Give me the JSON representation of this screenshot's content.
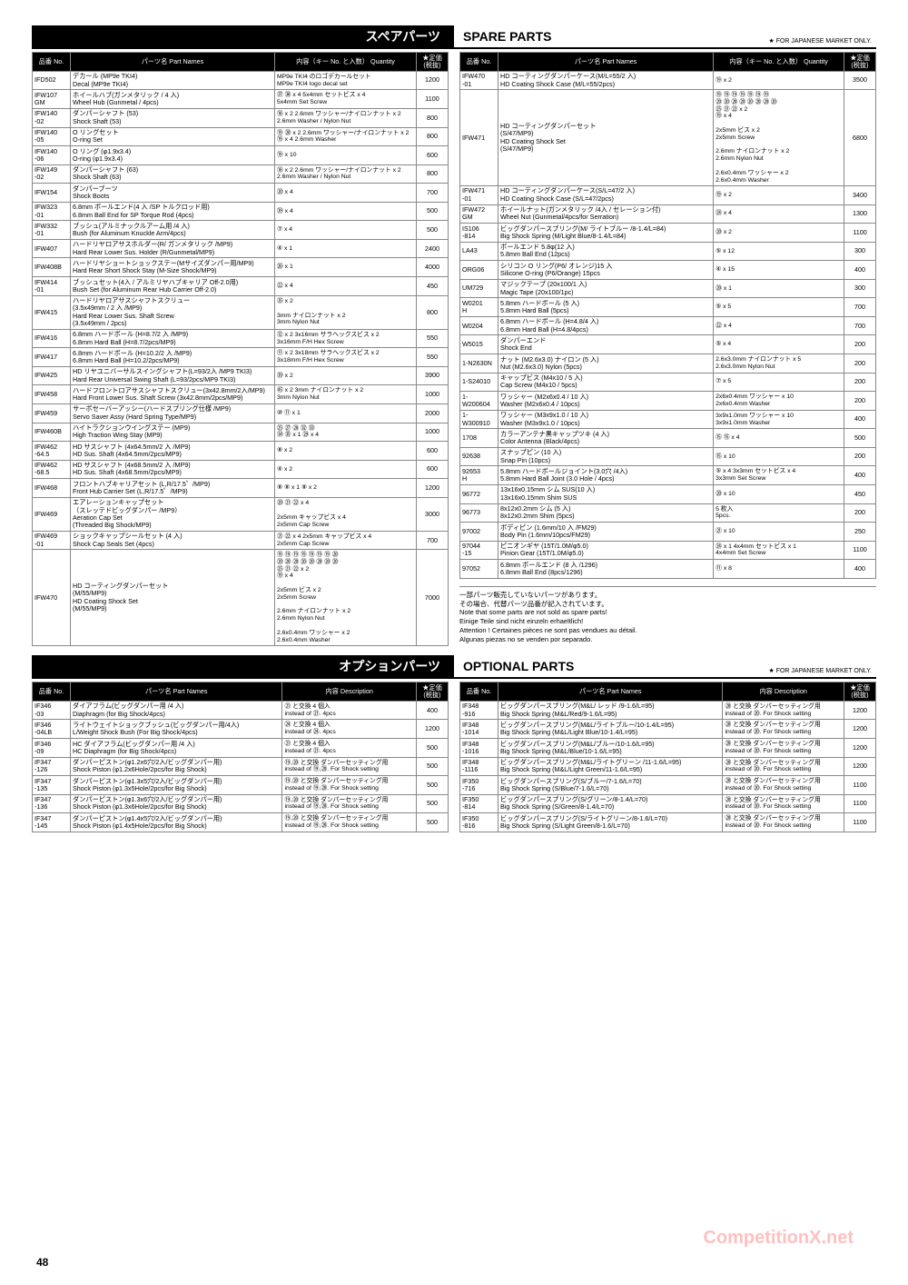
{
  "page_number": "48",
  "watermark": "CompetitionX.net",
  "market_note": "★ FOR JAPANESE MARKET ONLY.",
  "sections": {
    "spare": {
      "jp": "スペアパーツ",
      "en": "SPARE PARTS"
    },
    "optional": {
      "jp": "オプションパーツ",
      "en": "OPTIONAL PARTS"
    }
  },
  "headers": {
    "no": "品番\nNo.",
    "name": "パーツ名\nPart Names",
    "qty": "内容（キー No. と入数）\nQuantity",
    "desc": "内容\nDescription",
    "price": "★定価\n(税抜)"
  },
  "footnotes": [
    "一部パーツ販売していないパーツがあります。",
    "その場合、代替パーツ品番が記入されています。",
    "Note that some parts are not sold as spare parts!",
    "Einige Teile sind nicht einzeln erhaeltlich!",
    "Attention ! Certaines pièces ne sont pas vendues au détail.",
    "Algunas piezas no se venden por separado."
  ],
  "spare_left": [
    {
      "no": "IFD502",
      "name": "デカール (MP9e TKI4)\nDecal (MP9e TKI4)",
      "qty": "MP9e TKI4 のロゴデカールセット\nMP9e TKI4 logo decal set",
      "price": "1200"
    },
    {
      "no": "IFW107\nGM",
      "name": "ホイールハブ(ガンメタリック / 4 入)\nWheel Hub (Gunmetal / 4pcs)",
      "qty": "㊲ ㊳ x 4   5x4mm セットビス x 4\n5x4mm Set Screw",
      "price": "1100"
    },
    {
      "no": "IFW140\n-02",
      "name": "ダンパーシャフト (53)\nShock Shaft (53)",
      "qty": "⑱ x 2   2.6mm ワッシャー/ナイロンナット x 2\n2.6mm Washer / Nylon Nut",
      "price": "800"
    },
    {
      "no": "IFW140\n-05",
      "name": "O リングセット\nO-ring Set",
      "qty": "⑲ ⑳ x 2   2.6mm ワッシャー/ナイロンナット x 2\n⑲ x 4   2.6mm Washer",
      "price": "800"
    },
    {
      "no": "IFW140\n-06",
      "name": "O リング (φ1.9x3.4)\nO-ring (φ1.9x3.4)",
      "qty": "⑲ x 10",
      "price": "600"
    },
    {
      "no": "IFW149\n-02",
      "name": "ダンパーシャフト (63)\nShock Shaft (63)",
      "qty": "⑱ x 2   2.6mm ワッシャー/ナイロンナット x 2\n2.6mm Washer / Nylon Nut",
      "price": "800"
    },
    {
      "no": "IFW154",
      "name": "ダンパーブーツ\nShock Boots",
      "qty": "⑳ x 4",
      "price": "700"
    },
    {
      "no": "IFW323\n-01",
      "name": "6.8mm ボールエンド(4 入 /SP トルクロッド用)\n6.8mm Ball End for SP Torque Rod (4pcs)",
      "qty": "㊴ x 4",
      "price": "500"
    },
    {
      "no": "IFW332\n-01",
      "name": "ブッシュ(アルミナックルアーム用 /4 入)\nBush (for Aluminum Knuckle Arm/4pcs)",
      "qty": "⑦ x 4",
      "price": "500"
    },
    {
      "no": "IFW407",
      "name": "ハードリヤロアサスホルダー(R/ ガンメタリック /MP9)\nHard Rear Lower Sus. Holder (R/Gunmetal/MP9)",
      "qty": "④ x 1",
      "price": "2400"
    },
    {
      "no": "IFW408B",
      "name": "ハードリヤショートショックステー(Mサイズダンパー用/MP9)\nHard Rear Short Shock Stay (M-Size Shock/MP9)",
      "qty": "㉖ x 1",
      "price": "4000"
    },
    {
      "no": "IFW414\n-01",
      "name": "ブッシュセット(4入 / アルミリヤハブキャリア Off-2.0用)\nBush Set (for Aluminum Rear Hub Carrier Off-2.0)",
      "qty": "㉒ x 4",
      "price": "450"
    },
    {
      "no": "IFW415",
      "name": "ハードリヤロアサスシャフトスクリュー\n(3.5x49mm / 2 入 /MP9)\nHard Rear Lower Sus. Shaft Screw\n(3.5x49mm / 2pcs)",
      "qty": "㉟ x 2\n\n3mm ナイロンナット x 2\n3mm Nylon Nut",
      "price": "800"
    },
    {
      "no": "IFW416",
      "name": "6.8mm ハードボール (H=8.7/2 入 /MP9)\n6.8mm Hard Ball (H=8.7/2pcs/MP9)",
      "qty": "⑫ x 2   3x16mm サラヘックスビス x 2\n3x16mm F/H Hex Screw",
      "price": "550"
    },
    {
      "no": "IFW417",
      "name": "6.8mm ハードボール (H=10.2/2 入 /MP9)\n6.8mm Hard Ball (H=10.2/2pcs/MP9)",
      "qty": "⑪ x 2   3x18mm サラヘックスビス x 2\n3x18mm F/H Hex Screw",
      "price": "550"
    },
    {
      "no": "IFW425",
      "name": "HD リヤユニバーサルスイングシャフト(L=93/2入 /MP9 TKI3)\nHard Rear Universal Swing Shaft (L=93/2pcs/MP9 TKI3)",
      "qty": "㊴ x 2",
      "price": "3900"
    },
    {
      "no": "IFW458",
      "name": "ハードフロントロアサスシャフトスクリュー(3x42.8mm/2入/MP9)\nHard Front Lower Sus. Shaft Screw (3x42.8mm/2pcs/MP9)",
      "qty": "㊺ x 2   3mm ナイロンナット x 2\n3mm Nylon Nut",
      "price": "1000"
    },
    {
      "no": "IFW459",
      "name": "サーボセーバーアッシー(ハードスプリング仕様 /MP9)\nServo Saver Assy (Hard Spring Type/MP9)",
      "qty": "⑩ ⑪ x 1",
      "price": "2000"
    },
    {
      "no": "IFW460B",
      "name": "ハイトラクションウイングステー (MP9)\nHigh Traction Wing Stay (MP9)",
      "qty": "㉕ ㉗ ㉘ ㉜ ㉝\n㉞ ㉟ x 1   ㉙ x 4",
      "price": "1000"
    },
    {
      "no": "IFW462\n-64.5",
      "name": "HD サスシャフト (4x64.5mm/2 入 /MP9)\nHD Sus. Shaft (4x64.5mm/2pcs/MP9)",
      "qty": "⑧ x 2",
      "price": "600"
    },
    {
      "no": "IFW462\n-68.5",
      "name": "HD サスシャフト (4x68.5mm/2 入 /MP9)\nHD Sus. Shaft (4x68.5mm/2pcs/MP9)",
      "qty": "④ x 2",
      "price": "600"
    },
    {
      "no": "IFW468",
      "name": "フロントハブキャリアセット (L,R/17.5゜/MP9)\nFront Hub Carrier Set (L,R/17.5゜/MP9)",
      "qty": "⑧ ⑧ x 1   ⑧ x 2",
      "price": "1200"
    },
    {
      "no": "IFW469",
      "name": "エアレーションキャップセット\n（スレッテドビッグダンパー /MP9）\nAeration Cap Set\n(Threaded Big Shock/MP9)",
      "qty": "⑳ ㉑ ㉒ x 4\n\n2x5mm キャップビス x 4\n2x5mm Cap Screw",
      "price": "3000"
    },
    {
      "no": "IFW469\n-01",
      "name": "ショックキャップシールセット (4 入)\nShock Cap Seals Set (4pcs)",
      "qty": "㉑ ㉒ x 4   2x5mm キャップビス x 4\n2x5mm Cap Screw",
      "price": "700"
    },
    {
      "no": "IFW470",
      "name": "HD コーティングダンパーセット\n(M/55/MP9)\nHD Coating Shock Set\n(M/55/MP9)",
      "qty": "⑲ ⑲ ⑲ ⑲ ⑲ ⑲ ⑲ ⑳\n⑳ ⑳ ⑳ ⑳ ⑳ ⑳ ⑳ ⑳\n㉕ ㉑ ㉒ x 2\n⑲ x 4\n\n2x5mm ビス x 2\n2x5mm Screw\n\n2.6mm ナイロンナット x 2\n2.6mm Nylon Nut\n\n2.6x0.4mm ワッシャー x 2\n2.6x0.4mm Washer",
      "price": "7000"
    }
  ],
  "spare_right": [
    {
      "no": "IFW470\n-01",
      "name": "HD コーティングダンパーケース(M/L=55/2 入)\nHD Coating Shock Case (M/L=55/2pcs)",
      "qty": "⑲ x 2",
      "price": "3500"
    },
    {
      "no": "IFW471",
      "name": "HD コーティングダンパーセット\n(S/47/MP9)\nHD Coating Shock Set\n(S/47/MP9)",
      "qty": "⑲ ⑲ ⑲ ⑲ ⑲ ⑲ ⑲\n⑳ ⑳ ⑳ ⑳ ⑳ ⑳ ⑳ ⑳\n㉕ ㉑ ㉒ x 2\n⑲ x 4\n\n2x5mm ビス x 2\n2x5mm Screw\n\n2.6mm ナイロンナット x 2\n2.6mm Nylon Nut\n\n2.6x0.4mm ワッシャー x 2\n2.6x0.4mm Washer",
      "price": "6800"
    },
    {
      "no": "IFW471\n-01",
      "name": "HD コーティングダンパーケース(S/L=47/2 入)\nHD Coating Shock Case (S/L=47/2pcs)",
      "qty": "⑲ x 2",
      "price": "3400"
    },
    {
      "no": "IFW472\nGM",
      "name": "ホイールナット(ガンメタリック /4入 / セレーション付)\nWheel Nut (Gunmetal/4pcs/for Serration)",
      "qty": "㉔ x 4",
      "price": "1300"
    },
    {
      "no": "IS106\n-814",
      "name": "ビッグダンパースプリング(M/ ライトブルー /8-1.4/L=84)\nBig Shock Spring (M/Light Blue/8-1.4/L=84)",
      "qty": "⑳ x 2",
      "price": "1100"
    },
    {
      "no": "LA43",
      "name": "ボールエンド 5.8φ(12 入)\n5.8mm Ball End (12pcs)",
      "qty": "⑤ x 12",
      "price": "300"
    },
    {
      "no": "ORG06",
      "name": "シリコン O リング(P6/ オレンジ)15 入\nSilicone O-ring (P6/Orange) 15pcs",
      "qty": "④ x 15",
      "price": "400"
    },
    {
      "no": "UM729",
      "name": "マジックテープ (20x100/1 入)\nMagic Tape (20x100/1pc)",
      "qty": "⑳ x 1",
      "price": "300"
    },
    {
      "no": "W0201\nH",
      "name": "5.8mm ハードボール (5 入)\n5.8mm Hard Ball (5pcs)",
      "qty": "⑤ x 5",
      "price": "700"
    },
    {
      "no": "W0204",
      "name": "6.8mm ハードボール (H=4.8/4 入)\n6.8mm Hard Ball (H=4.8/4pcs)",
      "qty": "㉒ x 4",
      "price": "700"
    },
    {
      "no": "W5015",
      "name": "ダンパーエンド\nShock End",
      "qty": "⑤ x 4",
      "price": "200"
    },
    {
      "no": "1-N2630N",
      "name": "ナット (M2.6x3.0) ナイロン (5 入)\nNut (M2.6x3.0) Nylon (5pcs)",
      "qty": "2.6x3.0mm ナイロンナット x 5\n2.6x3.0mm Nylon Nut",
      "price": "200"
    },
    {
      "no": "1-S24010",
      "name": "キャップビス (M4x10 / 5 入)\nCap Screw (M4x10 / 5pcs)",
      "qty": "⑦ x 5",
      "price": "200"
    },
    {
      "no": "1-W200604",
      "name": "ワッシャー (M2x6x0.4 / 10 入)\nWasher (M2x6x0.4 / 10pcs)",
      "qty": "2x6x0.4mm ワッシャー x 10\n2x6x0.4mm Washer",
      "price": "200"
    },
    {
      "no": "1-W300910",
      "name": "ワッシャー (M3x9x1.0 / 10 入)\nWasher (M3x9x1.0 / 10pcs)",
      "qty": "3x9x1.0mm ワッシャー x 10\n3x9x1.0mm Washer",
      "price": "400"
    },
    {
      "no": "1708",
      "name": "カラーアンテナ黒キャップツキ (4 入)\nColor Antenna (Black/4pcs)",
      "qty": "⑮ ⑮ x 4",
      "price": "500"
    },
    {
      "no": "92638",
      "name": "スナップピン (10 入)\nSnap Pin (10pcs)",
      "qty": "⑮ x 10",
      "price": "200"
    },
    {
      "no": "92653\nH",
      "name": "5.8mm ハードボールジョイント(3.0穴 /4入)\n5.8mm Hard Ball Joint (3.0 Hole / 4pcs)",
      "qty": "⑤ x 4   3x3mm セットビス x 4\n3x3mm Set Screw",
      "price": "400"
    },
    {
      "no": "96772",
      "name": "13x16x0.15mm シム SUS(10 入)\n13x16x0.15mm Shim SUS",
      "qty": "⑳ x 10",
      "price": "450"
    },
    {
      "no": "96773",
      "name": "8x12x0.2mm シム (5 入)\n8x12x0.2mm Shim (5pcs)",
      "qty": "5 枚入\n5pcs.",
      "price": "200"
    },
    {
      "no": "97002",
      "name": "ボディピン (1.6mm/10 入 /FM29)\nBody Pin (1.6mm/10pcs/FM29)",
      "qty": "㉑ x 10",
      "price": "250"
    },
    {
      "no": "97044\n-15",
      "name": "ピニオンギヤ (15T/1.0M/φ5.0)\nPinion Gear (15T/1.0M/φ5.0)",
      "qty": "㉔ x 1   4x4mm セットビス x 1\n4x4mm Set Screw",
      "price": "1100"
    },
    {
      "no": "97052",
      "name": "6.8mm ボールエンド (8 入 /1296)\n6.8mm Ball End (8pcs/1296)",
      "qty": "⑪ x 8",
      "price": "400"
    }
  ],
  "optional_left": [
    {
      "no": "IF346\n-03",
      "name": "ダイアフラム(ビッグダンパー用 /4 入)\nDiaphragm (for Big Shock/4pcs)",
      "qty": "㉑ と交換       4 個入\ninstead of ㉑.   4pcs",
      "price": "400"
    },
    {
      "no": "IF346\n-04LB",
      "name": "ライトウェイトショックブッシュ(ビッグダンパー用/4入)\nL/Weight Shock Bush (For Big Shock/4pcs)",
      "qty": "㉔ と交換       4 個入\ninstead of ㉔.   4pcs",
      "price": "1200"
    },
    {
      "no": "IF346\n-09",
      "name": "HC ダイアフラム(ビッグダンパー用 /4 入)\nHC Diaphragm (for Big Shock/4pcs)",
      "qty": "㉑ と交換       4 個入\ninstead of ㉑.   4pcs",
      "price": "500"
    },
    {
      "no": "IF347\n-126",
      "name": "ダンパーピストン(φ1.2x6穴/2入/ビッグダンパー用)\nShock Piston (φ1.2x6Hole/2pcs/for Big Shock)",
      "qty": "⑲,⑳ と交換    ダンパーセッティング用\ninstead of ⑲,⑳. For Shock setting",
      "price": "500"
    },
    {
      "no": "IF347\n-135",
      "name": "ダンパーピストン(φ1.3x5穴/2入/ビッグダンパー用)\nShock Piston (φ1.3x5Hole/2pcs/for Big Shock)",
      "qty": "⑲,⑳ と交換    ダンパーセッティング用\ninstead of ⑲,⑳. For Shock setting",
      "price": "500"
    },
    {
      "no": "IF347\n-136",
      "name": "ダンパーピストン(φ1.3x6穴/2入/ビッグダンパー用)\nShock Piston (φ1.3x6Hole/2pcs/for Big Shock)",
      "qty": "⑲,⑳ と交換    ダンパーセッティング用\ninstead of ⑲,⑳. For Shock setting",
      "price": "500"
    },
    {
      "no": "IF347\n-145",
      "name": "ダンパーピストン(φ1.4x5穴/2入/ビッグダンパー用)\nShock Piston (φ1.4x5Hole/2pcs/for Big Shock)",
      "qty": "⑲,⑳ と交換    ダンパーセッティング用\ninstead of ⑲,⑳. For Shock setting",
      "price": "500"
    }
  ],
  "optional_right": [
    {
      "no": "IF348\n-916",
      "name": "ビッグダンパースプリング(M&L/ レッド /9-1.6/L=95)\nBig Shock Spring (M&L/Red/9-1.6/L=95)",
      "qty": "⑳ と交換    ダンパーセッティング用\ninstead of ⑳. For Shock setting",
      "price": "1200"
    },
    {
      "no": "IF348\n-1014",
      "name": "ビッグダンパースプリング(M&L/ライトブルー/10-1.4/L=95)\nBig Shock Spring (M&L/Light Blue/10-1.4/L=95)",
      "qty": "⑳ と交換    ダンパーセッティング用\ninstead of ⑳. For Shock setting",
      "price": "1200"
    },
    {
      "no": "IF348\n-1016",
      "name": "ビッグダンパースプリング(M&L/ブルー/10-1.6/L=95)\nBig Shock Spring (M&L/Blue/10-1.6/L=95)",
      "qty": "⑳ と交換    ダンパーセッティング用\ninstead of ⑳. For Shock setting",
      "price": "1200"
    },
    {
      "no": "IF348\n-1116",
      "name": "ビッグダンパースプリング(M&L/ライトグリーン /11-1.6/L=95)\nBig Shock Spring (M&L/Light Green/11-1.6/L=95)",
      "qty": "⑳ と交換    ダンパーセッティング用\ninstead of ⑳. For Shock setting",
      "price": "1200"
    },
    {
      "no": "IF350\n-716",
      "name": "ビッグダンパースプリング(S/ブルー/7-1.6/L=70)\nBig Shock Spring (S/Blue/7-1.6/L=70)",
      "qty": "⑳ と交換    ダンパーセッティング用\ninstead of ⑳. For Shock setting",
      "price": "1100"
    },
    {
      "no": "IF350\n-814",
      "name": "ビッグダンパースプリング(S/グリーン/8-1.4/L=70)\nBig Shock Spring (S/Green/8-1.4/L=70)",
      "qty": "⑳ と交換    ダンパーセッティング用\ninstead of ⑳. For Shock setting",
      "price": "1100"
    },
    {
      "no": "IF350\n-816",
      "name": "ビッグダンパースプリング(S/ライトグリーン/8-1.6/L=70)\nBig Shock Spring (S/Light Green/8-1.6/L=70)",
      "qty": "⑳ と交換    ダンパーセッティング用\ninstead of ⑳. For Shock setting",
      "price": "1100"
    }
  ]
}
